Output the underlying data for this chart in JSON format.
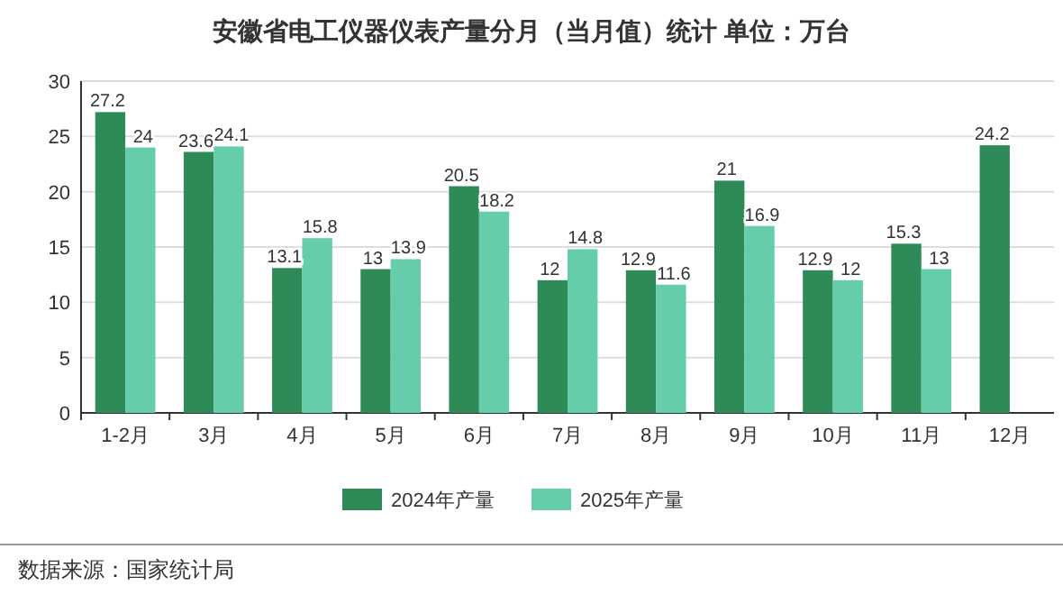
{
  "chart_data": {
    "type": "bar",
    "title": "安徽省电工仪器仪表产量分月（当月值）统计  单位：万台",
    "categories": [
      "1-2月",
      "3月",
      "4月",
      "5月",
      "6月",
      "7月",
      "8月",
      "9月",
      "10月",
      "11月",
      "12月"
    ],
    "series": [
      {
        "name": "2024年产量",
        "color": "#2e8b57",
        "values": [
          27.2,
          23.6,
          13.1,
          13,
          20.5,
          12,
          12.9,
          21,
          12.9,
          15.3,
          24.2
        ]
      },
      {
        "name": "2025年产量",
        "color": "#66cdaa",
        "values": [
          24,
          24.1,
          15.8,
          13.9,
          18.2,
          14.8,
          11.6,
          16.9,
          12,
          13,
          null
        ]
      }
    ],
    "ylim": [
      0,
      30
    ],
    "yticks": [
      0,
      5,
      10,
      15,
      20,
      25,
      30
    ],
    "grid": "y",
    "legend": "bottom",
    "data_labels": true,
    "annotations": [
      "数据来源：国家统计局"
    ]
  }
}
